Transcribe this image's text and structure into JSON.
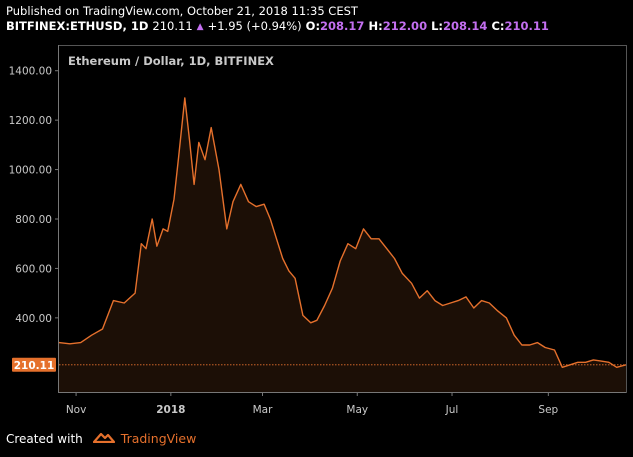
{
  "header": {
    "published": "Published on TradingView.com, October 21, 2018 11:35 CEST",
    "symbol": "BITFINEX:ETHUSD, 1D",
    "last": "210.11",
    "change": "+1.95 (+0.94%)",
    "o_label": "O:",
    "o_value": "208.17",
    "h_label": "H:",
    "h_value": "212.00",
    "l_label": "L:",
    "l_value": "208.14",
    "c_label": "C:",
    "c_value": "210.11",
    "arrow_icon": "up-triangle-icon"
  },
  "footer": {
    "created_with": "Created with",
    "brand": "TradingView",
    "logo_icon": "tradingview-logo-icon"
  },
  "colors": {
    "background": "#000000",
    "line": "#e5702c",
    "fill": "#1c0f06",
    "axis_text": "#c9c9c9",
    "price_badge_bg": "#e5702c",
    "accent_purple": "#c36ff0"
  },
  "chart_data": {
    "type": "area",
    "title": "Ethereum / Dollar, 1D, BITFINEX",
    "x_range": [
      "2017-10-21",
      "2018-10-21"
    ],
    "ylim": [
      100,
      1500
    ],
    "yticks": [
      400,
      600,
      800,
      1000,
      1200,
      1400
    ],
    "ytick_labels": [
      "400.00",
      "600.00",
      "800.00",
      "1000.00",
      "1200.00",
      "1400.00"
    ],
    "xticks": [
      "2017-11-01",
      "2018-01-01",
      "2018-03-01",
      "2018-05-01",
      "2018-07-01",
      "2018-09-01"
    ],
    "xtick_labels": [
      "Nov",
      "2018",
      "Mar",
      "May",
      "Jul",
      "Sep"
    ],
    "last_price": 210.11,
    "last_price_label": "210.11",
    "grid": false,
    "series": [
      {
        "x": [
          "2017-10-21",
          "2017-10-28",
          "2017-11-04",
          "2017-11-11",
          "2017-11-18",
          "2017-11-25",
          "2017-12-02",
          "2017-12-09",
          "2017-12-13",
          "2017-12-16",
          "2017-12-20",
          "2017-12-23",
          "2017-12-27",
          "2017-12-30",
          "2018-01-03",
          "2018-01-06",
          "2018-01-10",
          "2018-01-13",
          "2018-01-16",
          "2018-01-19",
          "2018-01-23",
          "2018-01-27",
          "2018-02-01",
          "2018-02-06",
          "2018-02-10",
          "2018-02-15",
          "2018-02-20",
          "2018-02-25",
          "2018-03-02",
          "2018-03-06",
          "2018-03-10",
          "2018-03-14",
          "2018-03-18",
          "2018-03-22",
          "2018-03-27",
          "2018-04-01",
          "2018-04-05",
          "2018-04-10",
          "2018-04-15",
          "2018-04-20",
          "2018-04-25",
          "2018-04-30",
          "2018-05-05",
          "2018-05-10",
          "2018-05-15",
          "2018-05-20",
          "2018-05-25",
          "2018-05-30",
          "2018-06-05",
          "2018-06-10",
          "2018-06-15",
          "2018-06-20",
          "2018-06-25",
          "2018-06-30",
          "2018-07-05",
          "2018-07-10",
          "2018-07-15",
          "2018-07-20",
          "2018-07-25",
          "2018-07-30",
          "2018-08-05",
          "2018-08-10",
          "2018-08-15",
          "2018-08-20",
          "2018-08-25",
          "2018-08-30",
          "2018-09-05",
          "2018-09-10",
          "2018-09-15",
          "2018-09-20",
          "2018-09-25",
          "2018-09-30",
          "2018-10-05",
          "2018-10-10",
          "2018-10-15",
          "2018-10-21"
        ],
        "y": [
          300,
          295,
          300,
          330,
          355,
          470,
          460,
          500,
          700,
          680,
          800,
          690,
          760,
          750,
          880,
          1050,
          1290,
          1120,
          940,
          1110,
          1040,
          1170,
          1000,
          760,
          870,
          940,
          870,
          850,
          860,
          800,
          720,
          640,
          590,
          560,
          410,
          380,
          390,
          450,
          520,
          630,
          700,
          680,
          760,
          720,
          720,
          680,
          640,
          580,
          540,
          480,
          510,
          470,
          450,
          460,
          470,
          485,
          440,
          470,
          460,
          430,
          400,
          330,
          290,
          290,
          300,
          280,
          270,
          200,
          210,
          220,
          220,
          230,
          225,
          220,
          200,
          210
        ]
      }
    ]
  }
}
